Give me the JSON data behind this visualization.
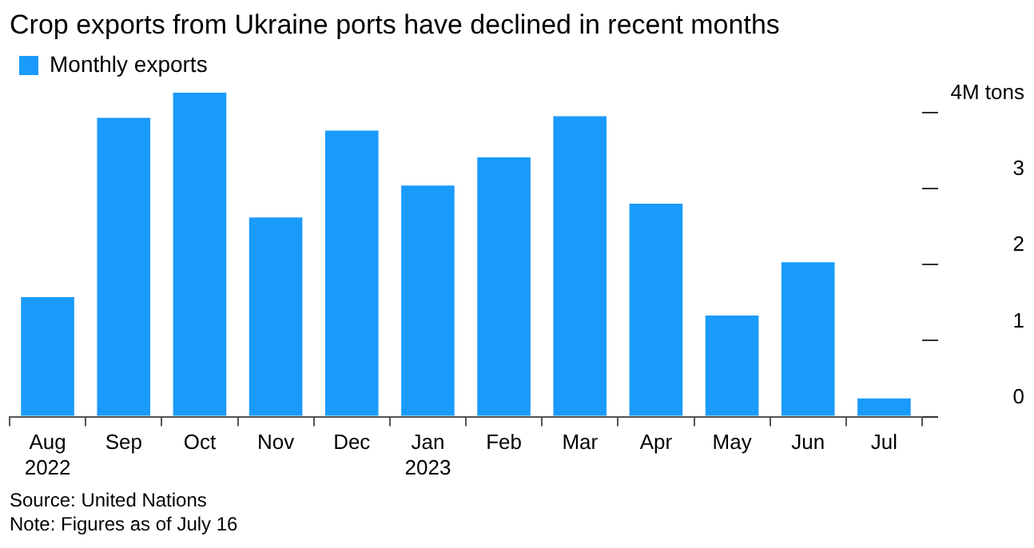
{
  "chart_data": {
    "type": "bar",
    "title": "Crop exports from Ukraine ports have declined in recent months",
    "categories": [
      "Aug\n2022",
      "Sep",
      "Oct",
      "Nov",
      "Dec",
      "Jan\n2023",
      "Feb",
      "Mar",
      "Apr",
      "May",
      "Jun",
      "Jul"
    ],
    "series": [
      {
        "name": "Monthly exports",
        "color": "#1a9bfc",
        "values": [
          1.57,
          3.93,
          4.26,
          2.62,
          3.76,
          3.04,
          3.41,
          3.95,
          2.8,
          1.33,
          2.03,
          0.24
        ]
      }
    ],
    "ylim": [
      0,
      4.26
    ],
    "yticks": [
      0,
      1,
      2,
      3,
      {
        "value": 4,
        "label": "4M tons"
      }
    ],
    "grid": false,
    "legend": "top left",
    "annotations": [
      "Source: United Nations",
      "Note: Figures as of July 16"
    ]
  }
}
